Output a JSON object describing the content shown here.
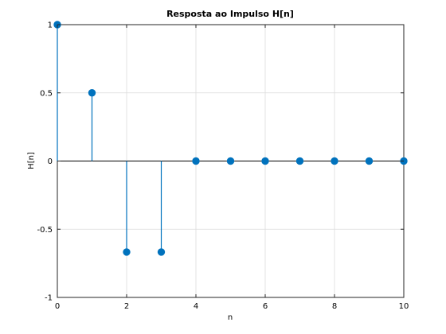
{
  "chart_data": {
    "type": "stem",
    "title": "Resposta ao Impulso H[n]",
    "xlabel": "n",
    "ylabel": "H[n]",
    "xlim": [
      0,
      10
    ],
    "ylim": [
      -1,
      1
    ],
    "grid": true,
    "x_ticks": [
      0,
      2,
      4,
      6,
      8,
      10
    ],
    "y_ticks": [
      -1,
      -0.5,
      0,
      0.5,
      1
    ],
    "x_tick_labels": [
      "0",
      "2",
      "4",
      "6",
      "8",
      "10"
    ],
    "y_tick_labels": [
      "-1",
      "-0.5",
      "0",
      "0.5",
      "1"
    ],
    "series": [
      {
        "color": "#0072bd",
        "x": [
          0,
          1,
          2,
          3,
          4,
          5,
          6,
          7,
          8,
          9,
          10
        ],
        "y": [
          1,
          0.5,
          -0.667,
          -0.667,
          0,
          0,
          0,
          0,
          0,
          0,
          0
        ]
      }
    ]
  }
}
